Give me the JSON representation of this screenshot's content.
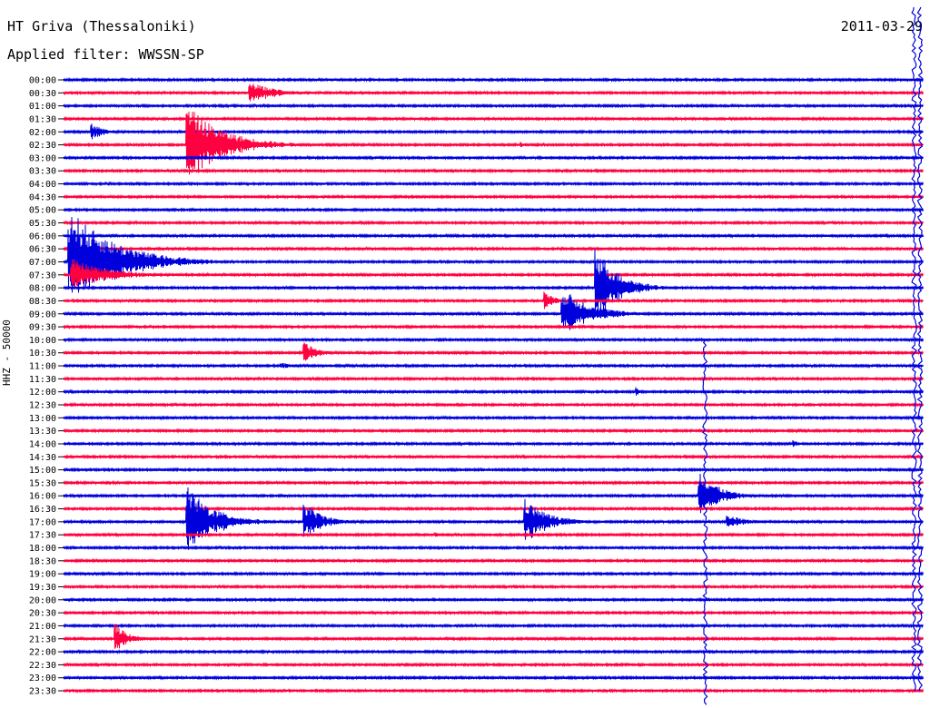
{
  "header": {
    "station": "HT Griva (Thessaloniki)",
    "filter": "Applied filter: WWSSN-SP",
    "date": "2011-03-29"
  },
  "chart_data": {
    "type": "line",
    "title": "HT Griva (Thessaloniki)",
    "ylabel": "HHZ - 50000",
    "y_tick_labels": [
      "00:00",
      "00:30",
      "01:00",
      "01:30",
      "02:00",
      "02:30",
      "03:00",
      "03:30",
      "04:00",
      "04:30",
      "05:00",
      "05:30",
      "06:00",
      "06:30",
      "07:00",
      "07:30",
      "08:00",
      "08:30",
      "09:00",
      "09:30",
      "10:00",
      "10:30",
      "11:00",
      "11:30",
      "12:00",
      "12:30",
      "13:00",
      "13:30",
      "14:00",
      "14:30",
      "15:00",
      "15:30",
      "16:00",
      "16:30",
      "17:00",
      "17:30",
      "18:00",
      "18:30",
      "19:00",
      "19:30",
      "20:00",
      "20:30",
      "21:00",
      "21:30",
      "22:00",
      "22:30",
      "23:00",
      "23:30"
    ],
    "trace_minutes": 30,
    "colors": {
      "even": "#0000dd",
      "odd": "#ff0040"
    },
    "events": [
      {
        "row": 1,
        "minute": 6.5,
        "amplitude": 12,
        "duration": 3.0
      },
      {
        "row": 4,
        "minute": 1.0,
        "amplitude": 9,
        "duration": 1.5
      },
      {
        "row": 5,
        "minute": 4.3,
        "amplitude": 45,
        "duration": 4.0
      },
      {
        "row": 5,
        "minute": 16.0,
        "amplitude": 3,
        "duration": 0.6
      },
      {
        "row": 14,
        "minute": 0.2,
        "amplitude": 60,
        "duration": 5.0
      },
      {
        "row": 15,
        "minute": 0.3,
        "amplitude": 18,
        "duration": 4.0
      },
      {
        "row": 16,
        "minute": 18.6,
        "amplitude": 45,
        "duration": 2.5
      },
      {
        "row": 17,
        "minute": 16.8,
        "amplitude": 10,
        "duration": 1.2
      },
      {
        "row": 18,
        "minute": 17.4,
        "amplitude": 30,
        "duration": 3.0
      },
      {
        "row": 21,
        "minute": 8.4,
        "amplitude": 12,
        "duration": 1.5
      },
      {
        "row": 22,
        "minute": 7.6,
        "amplitude": 5,
        "duration": 0.8
      },
      {
        "row": 24,
        "minute": 20.0,
        "amplitude": 5,
        "duration": 0.4
      },
      {
        "row": 28,
        "minute": 25.5,
        "amplitude": 4,
        "duration": 0.8
      },
      {
        "row": 32,
        "minute": 22.2,
        "amplitude": 30,
        "duration": 2.0
      },
      {
        "row": 34,
        "minute": 4.3,
        "amplitude": 40,
        "duration": 3.0
      },
      {
        "row": 34,
        "minute": 8.4,
        "amplitude": 22,
        "duration": 2.0
      },
      {
        "row": 34,
        "minute": 16.1,
        "amplitude": 26,
        "duration": 2.5
      },
      {
        "row": 34,
        "minute": 23.2,
        "amplitude": 8,
        "duration": 2.0
      },
      {
        "row": 35,
        "minute": 13.0,
        "amplitude": 3,
        "duration": 0.5
      },
      {
        "row": 43,
        "minute": 1.8,
        "amplitude": 18,
        "duration": 1.5
      }
    ],
    "tall_spikes": [
      {
        "minute": 22.4,
        "top_row": 20,
        "bottom_row": 47
      },
      {
        "minute": 29.7,
        "top_row": 0,
        "bottom_row": 46
      },
      {
        "minute": 29.9,
        "top_row": 0,
        "bottom_row": 46
      }
    ]
  }
}
